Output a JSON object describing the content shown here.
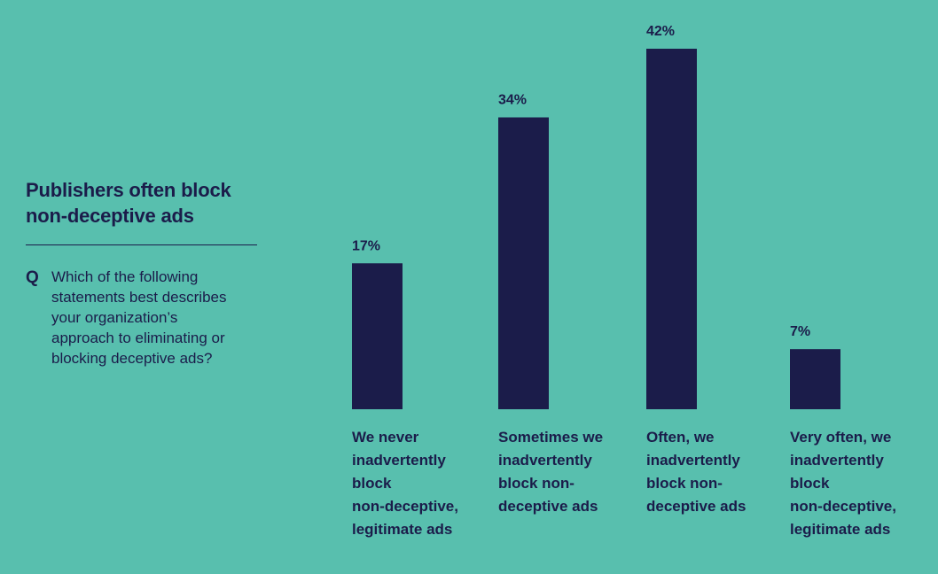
{
  "side": {
    "title": "Publishers often block\nnon-deceptive ads",
    "question_mark": "Q",
    "question": "Which of the following\nstatements best describes\nyour organization’s\napproach to eliminating or\nblocking deceptive ads?"
  },
  "chart_data": {
    "type": "bar",
    "categories": [
      "We never\ninadvertently\nblock\nnon-deceptive,\nlegitimate ads",
      "Sometimes we\ninadvertently\nblock non-\ndeceptive ads",
      "Often, we\ninadvertently\nblock non-\ndeceptive ads",
      "Very often, we\ninadvertently\nblock\nnon-deceptive,\nlegitimate ads"
    ],
    "values": [
      17,
      34,
      42,
      7
    ],
    "data_labels": [
      "17%",
      "34%",
      "42%",
      "7%"
    ],
    "ylim": [
      0,
      42
    ],
    "grid": false,
    "bar_color": "#1b1c4a"
  }
}
